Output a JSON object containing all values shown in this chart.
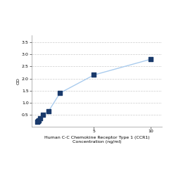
{
  "x_values": [
    0,
    0.0625,
    0.125,
    0.25,
    0.5,
    1.0,
    2.0,
    5.0,
    10.0
  ],
  "y_values": [
    0.2,
    0.22,
    0.25,
    0.35,
    0.5,
    0.65,
    1.4,
    2.15,
    2.8
  ],
  "line_color": "#aaccee",
  "marker_color": "#1a3a6b",
  "marker_size": 4,
  "xlabel_line1": "Human C-C Chemokine Receptor Type 1 (CCR1)",
  "xlabel_line2": "Concentration (ng/ml)",
  "ylabel": "OD",
  "xlim": [
    -0.5,
    11
  ],
  "ylim": [
    0.0,
    3.8
  ],
  "yticks": [
    0.5,
    1.0,
    1.5,
    2.0,
    2.5,
    3.0,
    3.5
  ],
  "xticks": [
    5,
    10
  ],
  "grid_color": "#cccccc",
  "background_color": "#ffffff",
  "font_size_label": 4.5,
  "font_size_tick": 4.5
}
